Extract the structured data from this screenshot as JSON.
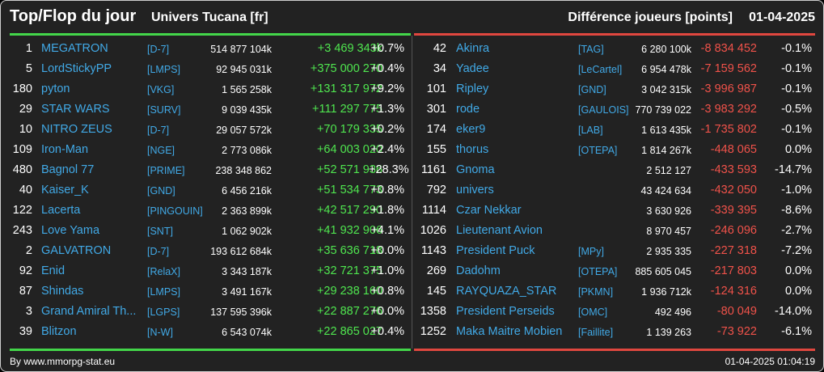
{
  "header": {
    "title": "Top/Flop du jour",
    "universe": "Univers Tucana [fr]",
    "metric": "Différence joueurs [points]",
    "date": "01-04-2025"
  },
  "colors": {
    "top": "#43d64a",
    "flop": "#e0473f",
    "link": "#41a9e6",
    "background": "#222222"
  },
  "top": [
    {
      "rank": "1",
      "name": "MEGATRON",
      "ally": "[D-7]",
      "points": "514 877 104k",
      "diff": "+3 469 343k",
      "pct": "+0.7%"
    },
    {
      "rank": "5",
      "name": "LordStickyPP",
      "ally": "[LMPS]",
      "points": "92 945 031k",
      "diff": "+375 000 270",
      "pct": "+0.4%"
    },
    {
      "rank": "180",
      "name": "pyton",
      "ally": "[VKG]",
      "points": "1 565 258k",
      "diff": "+131 317 972",
      "pct": "+9.2%"
    },
    {
      "rank": "29",
      "name": "STAR WARS",
      "ally": "[SURV]",
      "points": "9 039 435k",
      "diff": "+111 297 775",
      "pct": "+1.3%"
    },
    {
      "rank": "10",
      "name": "NITRO ZEUS",
      "ally": "[D-7]",
      "points": "29 057 572k",
      "diff": "+70 179 335",
      "pct": "+0.2%"
    },
    {
      "rank": "109",
      "name": "Iron-Man",
      "ally": "[NGE]",
      "points": "2 773 086k",
      "diff": "+64 003 020",
      "pct": "+2.4%"
    },
    {
      "rank": "480",
      "name": "Bagnol 77",
      "ally": "[PRIME]",
      "points": "238 348 862",
      "diff": "+52 571 936",
      "pct": "+28.3%"
    },
    {
      "rank": "40",
      "name": "Kaiser_K",
      "ally": "[GND]",
      "points": "6 456 216k",
      "diff": "+51 534 773",
      "pct": "+0.8%"
    },
    {
      "rank": "122",
      "name": "Lacerta",
      "ally": "[PINGOUIN]",
      "points": "2 363 899k",
      "diff": "+42 517 290",
      "pct": "+1.8%"
    },
    {
      "rank": "243",
      "name": "Love Yama",
      "ally": "[SNT]",
      "points": "1 062 902k",
      "diff": "+41 932 906",
      "pct": "+4.1%"
    },
    {
      "rank": "2",
      "name": "GALVATRON",
      "ally": "[D-7]",
      "points": "193 612 684k",
      "diff": "+35 636 718",
      "pct": "+0.0%"
    },
    {
      "rank": "92",
      "name": "Enid",
      "ally": "[RelaX]",
      "points": "3 343 187k",
      "diff": "+32 721 375",
      "pct": "+1.0%"
    },
    {
      "rank": "87",
      "name": "Shindas",
      "ally": "[LMPS]",
      "points": "3 491 167k",
      "diff": "+29 238 160",
      "pct": "+0.8%"
    },
    {
      "rank": "3",
      "name": "Grand Amiral Th...",
      "ally": "[LGPS]",
      "points": "137 595 396k",
      "diff": "+22 887 276",
      "pct": "+0.0%"
    },
    {
      "rank": "39",
      "name": "Blitzon",
      "ally": "[N-W]",
      "points": "6 543 074k",
      "diff": "+22 865 027",
      "pct": "+0.4%"
    }
  ],
  "flop": [
    {
      "rank": "42",
      "name": "Akinra",
      "ally": "[TAG]",
      "points": "6 280 100k",
      "diff": "-8 834 452",
      "pct": "-0.1%"
    },
    {
      "rank": "34",
      "name": "Yadee",
      "ally": "[LeCartel]",
      "points": "6 954 478k",
      "diff": "-7 159 562",
      "pct": "-0.1%"
    },
    {
      "rank": "101",
      "name": "Ripley",
      "ally": "[GND]",
      "points": "3 042 315k",
      "diff": "-3 996 987",
      "pct": "-0.1%"
    },
    {
      "rank": "301",
      "name": "rode",
      "ally": "[GAULOIS]",
      "points": "770 739 022",
      "diff": "-3 983 292",
      "pct": "-0.5%"
    },
    {
      "rank": "174",
      "name": "eker9",
      "ally": "[LAB]",
      "points": "1 613 435k",
      "diff": "-1 735 802",
      "pct": "-0.1%"
    },
    {
      "rank": "155",
      "name": "thorus",
      "ally": "[OTEPA]",
      "points": "1 814 267k",
      "diff": "-448 065",
      "pct": "0.0%"
    },
    {
      "rank": "1161",
      "name": "Gnoma",
      "ally": "",
      "points": "2 512 127",
      "diff": "-433 593",
      "pct": "-14.7%"
    },
    {
      "rank": "792",
      "name": "univers",
      "ally": "",
      "points": "43 424 634",
      "diff": "-432 050",
      "pct": "-1.0%"
    },
    {
      "rank": "1114",
      "name": "Czar Nekkar",
      "ally": "",
      "points": "3 630 926",
      "diff": "-339 395",
      "pct": "-8.6%"
    },
    {
      "rank": "1026",
      "name": "Lieutenant Avion",
      "ally": "",
      "points": "8 970 457",
      "diff": "-246 096",
      "pct": "-2.7%"
    },
    {
      "rank": "1143",
      "name": "President Puck",
      "ally": "[MPy]",
      "points": "2 935 335",
      "diff": "-227 318",
      "pct": "-7.2%"
    },
    {
      "rank": "269",
      "name": "Dadohm",
      "ally": "[OTEPA]",
      "points": "885 605 045",
      "diff": "-217 803",
      "pct": "0.0%"
    },
    {
      "rank": "145",
      "name": "RAYQUAZA_STAR",
      "ally": "[PKMN]",
      "points": "1 936 712k",
      "diff": "-124 316",
      "pct": "0.0%"
    },
    {
      "rank": "1358",
      "name": "President Perseids",
      "ally": "[OMC]",
      "points": "492 496",
      "diff": "-80 049",
      "pct": "-14.0%"
    },
    {
      "rank": "1252",
      "name": "Maka Maitre Mobien",
      "ally": "[Faillite]",
      "points": "1 139 263",
      "diff": "-73 922",
      "pct": "-6.1%"
    }
  ],
  "footer": {
    "credit": "By www.mmorpg-stat.eu",
    "timestamp": "01-04-2025 01:04:19"
  }
}
